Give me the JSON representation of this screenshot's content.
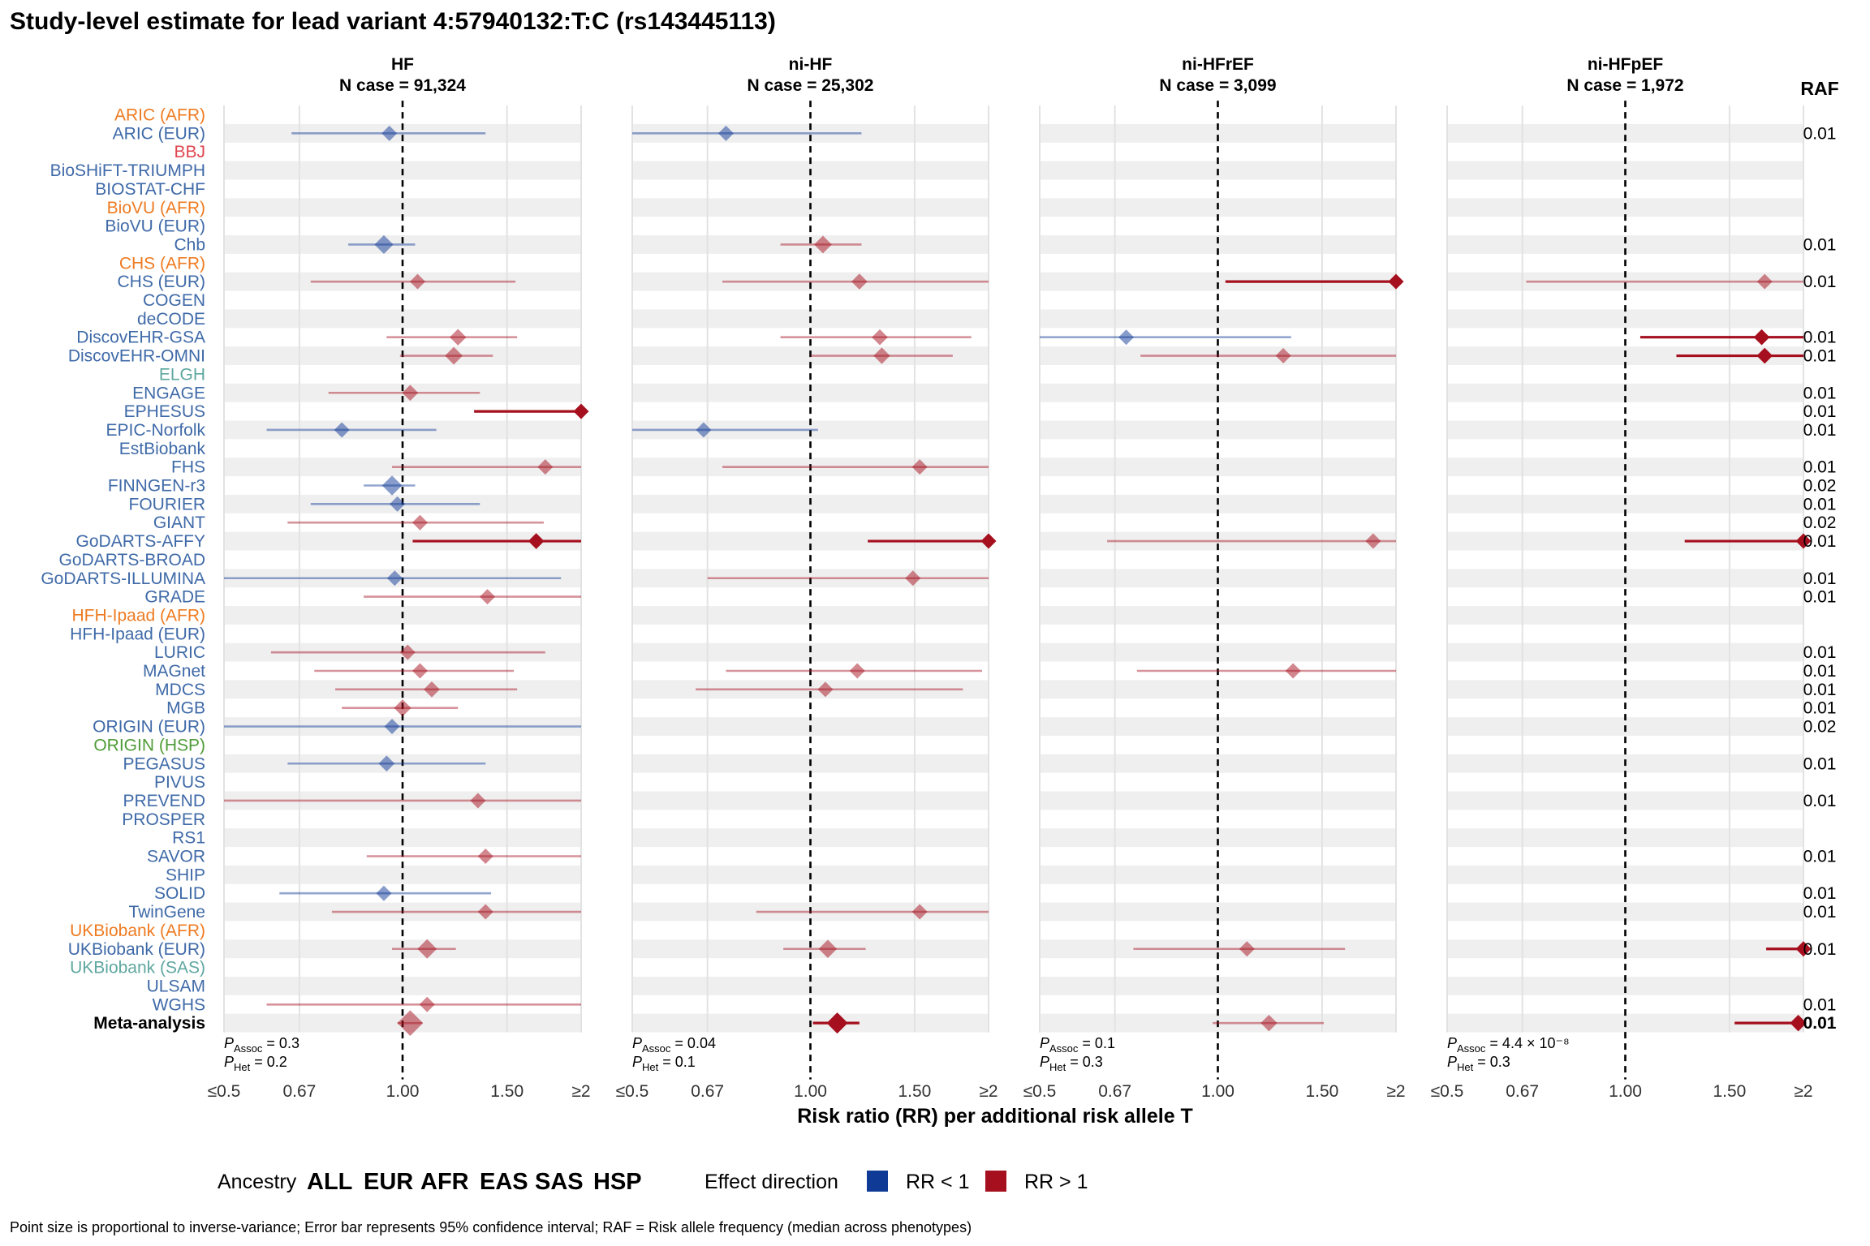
{
  "title": "Study-level estimate for lead variant 4:57940132:T:C (rs143445113)",
  "colors": {
    "EUR": "#3f6aa8",
    "AFR": "#ee7b22",
    "EAS": "#e04650",
    "SAS": "#5fa7a0",
    "HSP": "#4f9c38",
    "ALL": "#000000",
    "rr_lt1": "#0f3a96",
    "rr_gt1": "#a50f1e"
  },
  "raf_header": "RAF",
  "xlabel": "Risk ratio (RR) per additional risk allele T",
  "caption": "Point size is proportional to inverse-variance; Error bar represents 95% confidence interval; RAF = Risk allele frequency (median across phenotypes)",
  "legend": {
    "ancestry_label": "Ancestry",
    "ancestries": [
      "ALL",
      "EUR",
      "AFR",
      "EAS",
      "SAS",
      "HSP"
    ],
    "effect_label": "Effect direction",
    "effects": [
      {
        "label": "RR < 1",
        "color_key": "rr_lt1"
      },
      {
        "label": "RR > 1",
        "color_key": "rr_gt1"
      }
    ]
  },
  "chart_data": {
    "type": "forest",
    "x_scale": "log2",
    "xlim": [
      0.5,
      2
    ],
    "x_ticks": [
      0.5,
      0.67,
      1.0,
      1.5,
      2
    ],
    "x_tick_labels": [
      "≤0.5",
      "0.67",
      "1.00",
      "1.50",
      "≥2"
    ],
    "reference_line": 1.0,
    "studies": [
      {
        "name": "ARIC (AFR)",
        "ancestry": "AFR"
      },
      {
        "name": "ARIC (EUR)",
        "ancestry": "EUR"
      },
      {
        "name": "BBJ",
        "ancestry": "EAS"
      },
      {
        "name": "BioSHiFT-TRIUMPH",
        "ancestry": "EUR"
      },
      {
        "name": "BIOSTAT-CHF",
        "ancestry": "EUR"
      },
      {
        "name": "BioVU (AFR)",
        "ancestry": "AFR"
      },
      {
        "name": "BioVU (EUR)",
        "ancestry": "EUR"
      },
      {
        "name": "Chb",
        "ancestry": "EUR"
      },
      {
        "name": "CHS (AFR)",
        "ancestry": "AFR"
      },
      {
        "name": "CHS (EUR)",
        "ancestry": "EUR"
      },
      {
        "name": "COGEN",
        "ancestry": "EUR"
      },
      {
        "name": "deCODE",
        "ancestry": "EUR"
      },
      {
        "name": "DiscovEHR-GSA",
        "ancestry": "EUR"
      },
      {
        "name": "DiscovEHR-OMNI",
        "ancestry": "EUR"
      },
      {
        "name": "ELGH",
        "ancestry": "SAS"
      },
      {
        "name": "ENGAGE",
        "ancestry": "EUR"
      },
      {
        "name": "EPHESUS",
        "ancestry": "EUR"
      },
      {
        "name": "EPIC-Norfolk",
        "ancestry": "EUR"
      },
      {
        "name": "EstBiobank",
        "ancestry": "EUR"
      },
      {
        "name": "FHS",
        "ancestry": "EUR"
      },
      {
        "name": "FINNGEN-r3",
        "ancestry": "EUR"
      },
      {
        "name": "FOURIER",
        "ancestry": "EUR"
      },
      {
        "name": "GIANT",
        "ancestry": "EUR"
      },
      {
        "name": "GoDARTS-AFFY",
        "ancestry": "EUR"
      },
      {
        "name": "GoDARTS-BROAD",
        "ancestry": "EUR"
      },
      {
        "name": "GoDARTS-ILLUMINA",
        "ancestry": "EUR"
      },
      {
        "name": "GRADE",
        "ancestry": "EUR"
      },
      {
        "name": "HFH-Ipaad (AFR)",
        "ancestry": "AFR"
      },
      {
        "name": "HFH-Ipaad (EUR)",
        "ancestry": "EUR"
      },
      {
        "name": "LURIC",
        "ancestry": "EUR"
      },
      {
        "name": "MAGnet",
        "ancestry": "EUR"
      },
      {
        "name": "MDCS",
        "ancestry": "EUR"
      },
      {
        "name": "MGB",
        "ancestry": "EUR"
      },
      {
        "name": "ORIGIN (EUR)",
        "ancestry": "EUR"
      },
      {
        "name": "ORIGIN (HSP)",
        "ancestry": "HSP"
      },
      {
        "name": "PEGASUS",
        "ancestry": "EUR"
      },
      {
        "name": "PIVUS",
        "ancestry": "EUR"
      },
      {
        "name": "PREVEND",
        "ancestry": "EUR"
      },
      {
        "name": "PROSPER",
        "ancestry": "EUR"
      },
      {
        "name": "RS1",
        "ancestry": "EUR"
      },
      {
        "name": "SAVOR",
        "ancestry": "EUR"
      },
      {
        "name": "SHIP",
        "ancestry": "EUR"
      },
      {
        "name": "SOLID",
        "ancestry": "EUR"
      },
      {
        "name": "TwinGene",
        "ancestry": "EUR"
      },
      {
        "name": "UKBiobank (AFR)",
        "ancestry": "AFR"
      },
      {
        "name": "UKBiobank (EUR)",
        "ancestry": "EUR"
      },
      {
        "name": "UKBiobank (SAS)",
        "ancestry": "SAS"
      },
      {
        "name": "ULSAM",
        "ancestry": "EUR"
      },
      {
        "name": "WGHS",
        "ancestry": "EUR"
      },
      {
        "name": "Meta-analysis",
        "ancestry": "ALL"
      }
    ],
    "raf": [
      "",
      "0.01",
      "",
      "",
      "",
      "",
      "",
      "0.01",
      "",
      "0.01",
      "",
      "",
      "0.01",
      "0.01",
      "",
      "0.01",
      "0.01",
      "0.01",
      "",
      "0.01",
      "0.02",
      "0.01",
      "0.02",
      "0.01",
      "",
      "0.01",
      "0.01",
      "",
      "",
      "0.01",
      "0.01",
      "0.01",
      "0.01",
      "0.02",
      "",
      "0.01",
      "",
      "0.01",
      "",
      "",
      "0.01",
      "",
      "0.01",
      "0.01",
      "",
      "0.01",
      "",
      "",
      "0.01",
      "0.01"
    ],
    "panels": [
      {
        "phenotype": "HF",
        "n_case": "N case = 91,324",
        "p_assoc": "= 0.3",
        "p_het": "= 0.2",
        "estimates": [
          {
            "row": 1,
            "rr": 0.95,
            "lo": 0.65,
            "hi": 1.38,
            "size": 0.5
          },
          {
            "row": 7,
            "rr": 0.93,
            "lo": 0.81,
            "hi": 1.05,
            "size": 0.8
          },
          {
            "row": 9,
            "rr": 1.06,
            "lo": 0.7,
            "hi": 1.55,
            "size": 0.5
          },
          {
            "row": 12,
            "rr": 1.24,
            "lo": 0.94,
            "hi": 1.56,
            "size": 0.6
          },
          {
            "row": 13,
            "rr": 1.22,
            "lo": 0.99,
            "hi": 1.42,
            "size": 0.7
          },
          {
            "row": 15,
            "rr": 1.03,
            "lo": 0.75,
            "hi": 1.35,
            "size": 0.55
          },
          {
            "row": 16,
            "rr": 2.0,
            "lo": 1.32,
            "hi": 2.0,
            "size": 0.5,
            "bold": true
          },
          {
            "row": 17,
            "rr": 0.79,
            "lo": 0.59,
            "hi": 1.14,
            "size": 0.5
          },
          {
            "row": 19,
            "rr": 1.74,
            "lo": 0.96,
            "hi": 2.0,
            "size": 0.5
          },
          {
            "row": 20,
            "rr": 0.96,
            "lo": 0.86,
            "hi": 1.05,
            "size": 0.9
          },
          {
            "row": 21,
            "rr": 0.98,
            "lo": 0.7,
            "hi": 1.35,
            "size": 0.5
          },
          {
            "row": 22,
            "rr": 1.07,
            "lo": 0.64,
            "hi": 1.73,
            "size": 0.5
          },
          {
            "row": 23,
            "rr": 1.68,
            "lo": 1.04,
            "hi": 2.0,
            "size": 0.55,
            "bold": true
          },
          {
            "row": 25,
            "rr": 0.97,
            "lo": 0.5,
            "hi": 1.85,
            "size": 0.5
          },
          {
            "row": 26,
            "rr": 1.39,
            "lo": 0.86,
            "hi": 2.0,
            "size": 0.5
          },
          {
            "row": 29,
            "rr": 1.02,
            "lo": 0.6,
            "hi": 1.74,
            "size": 0.5
          },
          {
            "row": 30,
            "rr": 1.07,
            "lo": 0.71,
            "hi": 1.54,
            "size": 0.5
          },
          {
            "row": 31,
            "rr": 1.12,
            "lo": 0.77,
            "hi": 1.56,
            "size": 0.55
          },
          {
            "row": 32,
            "rr": 1.0,
            "lo": 0.79,
            "hi": 1.24,
            "size": 0.65
          },
          {
            "row": 33,
            "rr": 0.96,
            "lo": 0.5,
            "hi": 2.0,
            "size": 0.5
          },
          {
            "row": 35,
            "rr": 0.94,
            "lo": 0.64,
            "hi": 1.38,
            "size": 0.55
          },
          {
            "row": 37,
            "rr": 1.34,
            "lo": 0.5,
            "hi": 2.0,
            "size": 0.5
          },
          {
            "row": 40,
            "rr": 1.38,
            "lo": 0.87,
            "hi": 2.0,
            "size": 0.5
          },
          {
            "row": 42,
            "rr": 0.93,
            "lo": 0.62,
            "hi": 1.41,
            "size": 0.5
          },
          {
            "row": 43,
            "rr": 1.38,
            "lo": 0.76,
            "hi": 2.0,
            "size": 0.5
          },
          {
            "row": 45,
            "rr": 1.1,
            "lo": 0.96,
            "hi": 1.23,
            "size": 0.85
          },
          {
            "row": 48,
            "rr": 1.1,
            "lo": 0.59,
            "hi": 2.0,
            "size": 0.5
          },
          {
            "row": 49,
            "rr": 1.03,
            "lo": 0.98,
            "hi": 1.08,
            "size": 1.4
          }
        ]
      },
      {
        "phenotype": "ni-HF",
        "n_case": "N case = 25,302",
        "p_assoc": "= 0.04",
        "p_het": "= 0.1",
        "estimates": [
          {
            "row": 1,
            "rr": 0.72,
            "lo": 0.5,
            "hi": 1.22,
            "size": 0.5
          },
          {
            "row": 7,
            "rr": 1.05,
            "lo": 0.89,
            "hi": 1.22,
            "size": 0.7
          },
          {
            "row": 9,
            "rr": 1.21,
            "lo": 0.71,
            "hi": 2.0,
            "size": 0.55
          },
          {
            "row": 12,
            "rr": 1.31,
            "lo": 0.89,
            "hi": 1.87,
            "size": 0.55
          },
          {
            "row": 13,
            "rr": 1.32,
            "lo": 1.0,
            "hi": 1.74,
            "size": 0.6
          },
          {
            "row": 17,
            "rr": 0.66,
            "lo": 0.5,
            "hi": 1.03,
            "size": 0.5
          },
          {
            "row": 19,
            "rr": 1.53,
            "lo": 0.71,
            "hi": 2.0,
            "size": 0.5
          },
          {
            "row": 23,
            "rr": 2.0,
            "lo": 1.25,
            "hi": 2.0,
            "size": 0.5,
            "bold": true
          },
          {
            "row": 25,
            "rr": 1.49,
            "lo": 0.67,
            "hi": 2.0,
            "size": 0.5
          },
          {
            "row": 30,
            "rr": 1.2,
            "lo": 0.72,
            "hi": 1.95,
            "size": 0.5
          },
          {
            "row": 31,
            "rr": 1.06,
            "lo": 0.64,
            "hi": 1.81,
            "size": 0.5
          },
          {
            "row": 43,
            "rr": 1.53,
            "lo": 0.81,
            "hi": 2.0,
            "size": 0.5
          },
          {
            "row": 45,
            "rr": 1.07,
            "lo": 0.9,
            "hi": 1.24,
            "size": 0.75
          },
          {
            "row": 49,
            "rr": 1.11,
            "lo": 1.01,
            "hi": 1.21,
            "size": 1.0,
            "bold": true
          }
        ]
      },
      {
        "phenotype": "ni-HFrEF",
        "n_case": "N case = 3,099",
        "p_assoc": "= 0.1",
        "p_het": "= 0.3",
        "estimates": [
          {
            "row": 9,
            "rr": 2.0,
            "lo": 1.03,
            "hi": 2.0,
            "size": 0.5,
            "bold": true
          },
          {
            "row": 12,
            "rr": 0.7,
            "lo": 0.5,
            "hi": 1.33,
            "size": 0.5
          },
          {
            "row": 13,
            "rr": 1.29,
            "lo": 0.74,
            "hi": 2.0,
            "size": 0.5
          },
          {
            "row": 23,
            "rr": 1.83,
            "lo": 0.65,
            "hi": 2.0,
            "size": 0.5
          },
          {
            "row": 30,
            "rr": 1.34,
            "lo": 0.73,
            "hi": 2.0,
            "size": 0.5
          },
          {
            "row": 45,
            "rr": 1.12,
            "lo": 0.72,
            "hi": 1.64,
            "size": 0.5
          },
          {
            "row": 49,
            "rr": 1.22,
            "lo": 0.98,
            "hi": 1.51,
            "size": 0.6
          }
        ]
      },
      {
        "phenotype": "ni-HFpEF",
        "n_case": "N case = 1,972",
        "p_assoc": "= 4.4 × 10⁻⁸",
        "p_het": "= 0.3",
        "estimates": [
          {
            "row": 9,
            "rr": 1.72,
            "lo": 0.68,
            "hi": 2.0,
            "size": 0.5
          },
          {
            "row": 12,
            "rr": 1.7,
            "lo": 1.06,
            "hi": 2.0,
            "size": 0.55,
            "bold": true
          },
          {
            "row": 13,
            "rr": 1.72,
            "lo": 1.22,
            "hi": 2.0,
            "size": 0.55,
            "bold": true
          },
          {
            "row": 23,
            "rr": 2.0,
            "lo": 1.26,
            "hi": 2.0,
            "size": 0.5,
            "bold": true
          },
          {
            "row": 45,
            "rr": 2.0,
            "lo": 1.73,
            "hi": 2.0,
            "size": 0.5,
            "bold": true
          },
          {
            "row": 49,
            "rr": 1.96,
            "lo": 1.53,
            "hi": 2.0,
            "size": 0.6,
            "bold": true
          }
        ]
      }
    ]
  }
}
